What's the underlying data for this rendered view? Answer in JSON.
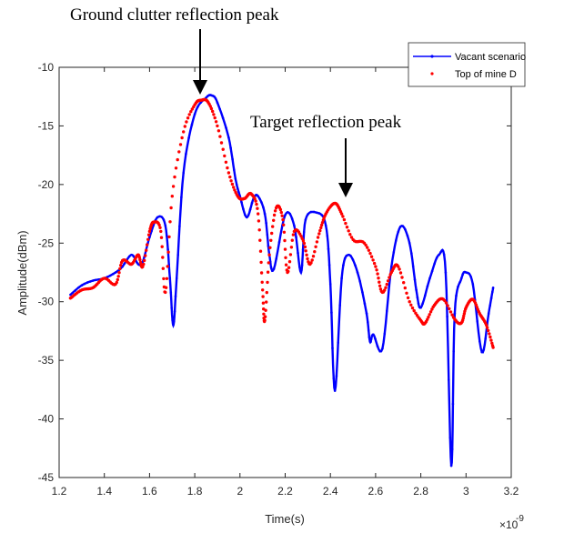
{
  "chart_data": {
    "type": "line",
    "xlabel": "Time(s)",
    "ylabel": "Amplitude(dBm)",
    "x_exponent": "×10",
    "x_exponent_power": "-9",
    "xlim": [
      1.2,
      3.2
    ],
    "ylim": [
      -45,
      -10
    ],
    "xticks": [
      "1.2",
      "1.4",
      "1.6",
      "1.8",
      "2",
      "2.2",
      "2.4",
      "2.6",
      "2.8",
      "3",
      "3.2"
    ],
    "yticks": [
      "-10",
      "-15",
      "-20",
      "-25",
      "-30",
      "-35",
      "-40",
      "-45"
    ],
    "grid": false,
    "legend_position": "top-right",
    "series": [
      {
        "name": "Vacant scenario",
        "color": "#0000ff",
        "x": [
          1.25,
          1.3,
          1.35,
          1.4,
          1.45,
          1.48,
          1.52,
          1.55,
          1.57,
          1.6,
          1.635,
          1.67,
          1.69,
          1.705,
          1.72,
          1.75,
          1.8,
          1.85,
          1.875,
          1.9,
          1.95,
          1.98,
          2.0,
          2.03,
          2.06,
          2.08,
          2.11,
          2.13,
          2.15,
          2.2,
          2.24,
          2.27,
          2.29,
          2.34,
          2.38,
          2.4,
          2.42,
          2.45,
          2.48,
          2.52,
          2.56,
          2.575,
          2.59,
          2.63,
          2.67,
          2.71,
          2.75,
          2.78,
          2.8,
          2.84,
          2.88,
          2.91,
          2.935,
          2.95,
          2.98,
          3.0,
          3.03,
          3.07,
          3.1,
          3.12
        ],
        "y": [
          -29.4,
          -28.6,
          -28.2,
          -28.0,
          -27.5,
          -27.0,
          -26.0,
          -26.8,
          -26.6,
          -24.5,
          -22.8,
          -23.5,
          -28.0,
          -32.0,
          -28.0,
          -19.0,
          -14.0,
          -12.6,
          -12.4,
          -13.0,
          -16.0,
          -19.5,
          -21.0,
          -22.8,
          -21.2,
          -21.0,
          -22.5,
          -26.0,
          -27.2,
          -22.6,
          -23.5,
          -27.5,
          -23.0,
          -22.4,
          -23.5,
          -28.5,
          -37.6,
          -28.0,
          -26.0,
          -27.5,
          -31.0,
          -33.4,
          -32.8,
          -34.0,
          -27.0,
          -23.6,
          -25.0,
          -29.0,
          -30.5,
          -28.0,
          -26.0,
          -27.5,
          -44.0,
          -31.0,
          -28.0,
          -27.5,
          -28.5,
          -34.3,
          -31.0,
          -28.8
        ]
      },
      {
        "name": "Top of mine D",
        "color": "#ff0000",
        "x": [
          1.25,
          1.3,
          1.35,
          1.4,
          1.45,
          1.48,
          1.52,
          1.55,
          1.57,
          1.6,
          1.62,
          1.65,
          1.67,
          1.7,
          1.75,
          1.8,
          1.83,
          1.86,
          1.9,
          1.95,
          1.99,
          2.02,
          2.05,
          2.08,
          2.1,
          2.11,
          2.13,
          2.16,
          2.19,
          2.21,
          2.24,
          2.28,
          2.31,
          2.35,
          2.38,
          2.42,
          2.45,
          2.5,
          2.55,
          2.6,
          2.63,
          2.67,
          2.7,
          2.75,
          2.8,
          2.82,
          2.86,
          2.9,
          2.95,
          2.98,
          3.0,
          3.03,
          3.06,
          3.09,
          3.12
        ],
        "y": [
          -29.7,
          -29.0,
          -28.8,
          -28.0,
          -28.5,
          -26.5,
          -26.8,
          -26.0,
          -27.0,
          -24.0,
          -23.2,
          -24.0,
          -29.2,
          -21.0,
          -15.5,
          -13.2,
          -12.8,
          -13.0,
          -15.0,
          -19.0,
          -21.0,
          -21.2,
          -20.8,
          -22.5,
          -29.0,
          -31.6,
          -26.0,
          -22.0,
          -23.0,
          -27.5,
          -24.0,
          -24.8,
          -26.8,
          -24.2,
          -22.5,
          -21.6,
          -22.5,
          -24.7,
          -25.0,
          -27.0,
          -29.2,
          -27.5,
          -27.0,
          -30.0,
          -31.6,
          -31.8,
          -30.3,
          -29.8,
          -31.5,
          -31.8,
          -30.5,
          -29.8,
          -31.0,
          -32.0,
          -33.9
        ]
      }
    ],
    "annotations": [
      {
        "text": "Ground clutter reflection peak",
        "x": 1.83,
        "y": -12.6
      },
      {
        "text": "Target reflection peak",
        "x": 2.47,
        "y": -21.2
      }
    ]
  }
}
